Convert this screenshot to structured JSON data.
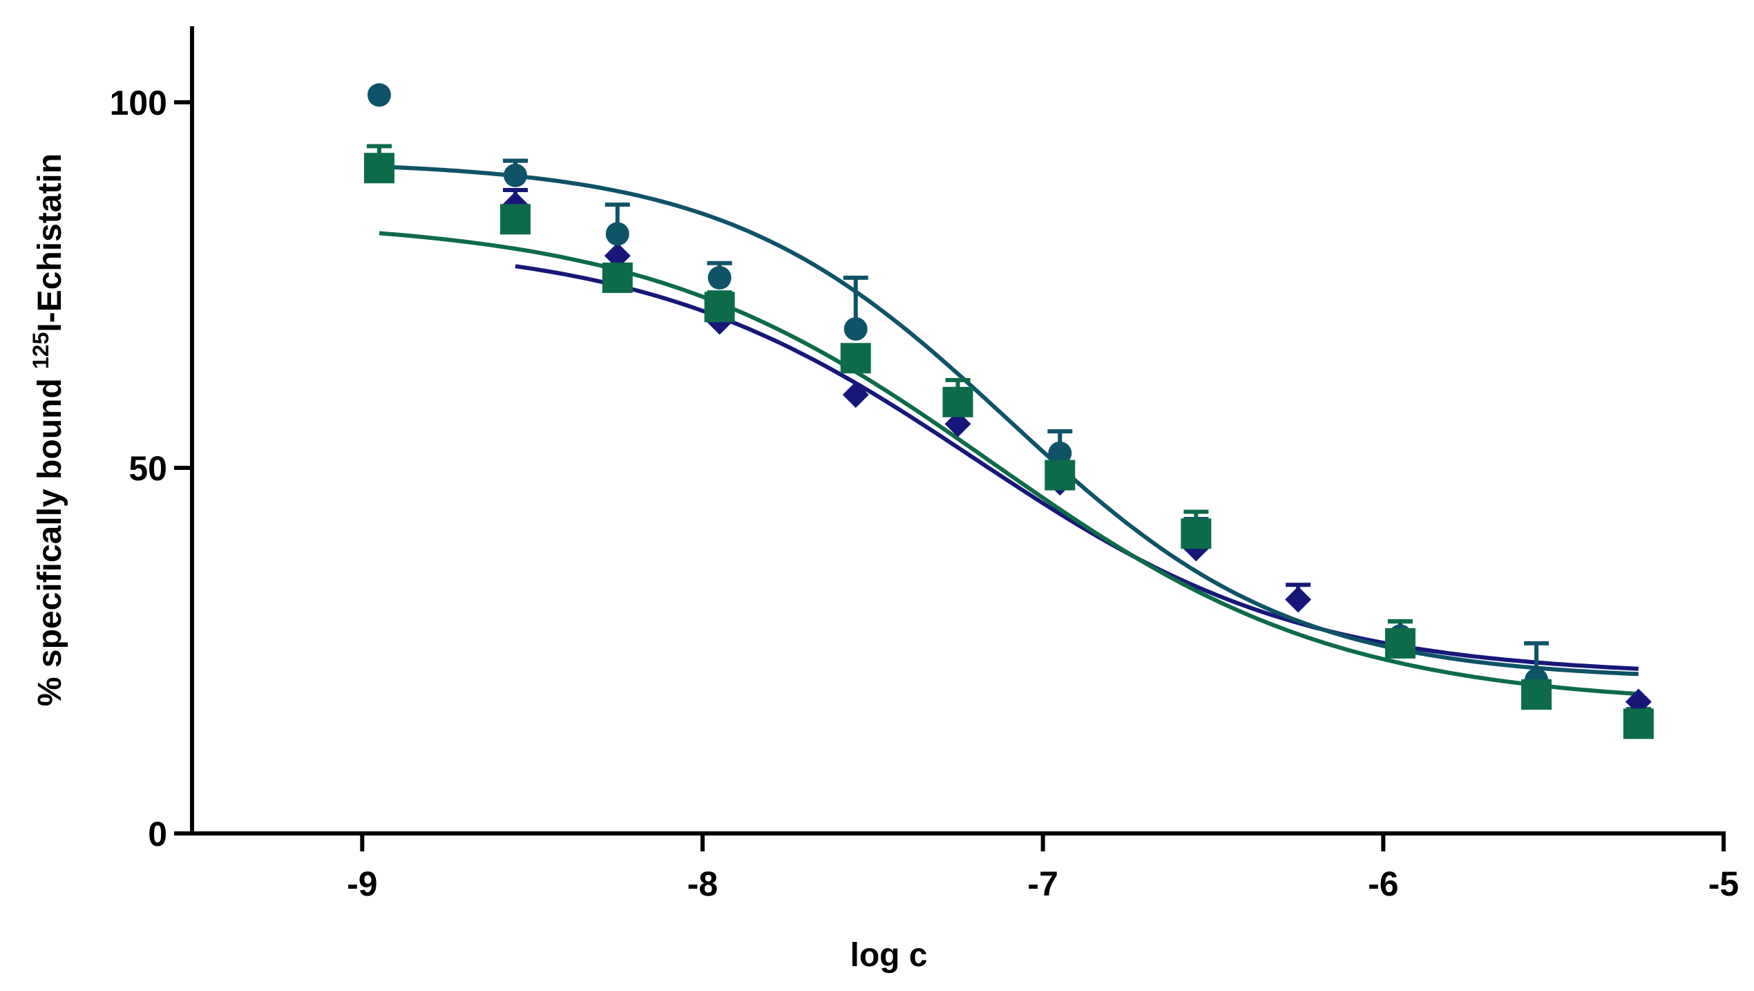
{
  "chart_data": {
    "type": "scatter",
    "title": "",
    "xlabel": "log c",
    "ylabel": {
      "prefix": "% specifically bound ",
      "superscript": "125",
      "suffix": "I-Echistatin"
    },
    "xlim": [
      -9.5,
      -5
    ],
    "ylim": [
      0,
      100
    ],
    "x_ticks": [
      -9,
      -8,
      -7,
      -6,
      -5
    ],
    "x_tick_labels": [
      "-9",
      "-8",
      "-7",
      "-6",
      "-5"
    ],
    "y_ticks": [
      0,
      50,
      100
    ],
    "y_tick_labels": [
      "0",
      "50",
      "100"
    ],
    "grid": false,
    "legend": "none",
    "series": [
      {
        "marker": "diamond",
        "color": "#17177a",
        "x": [
          -8.55,
          -8.25,
          -7.95,
          -7.55,
          -7.25,
          -6.95,
          -6.55,
          -6.25,
          -5.95,
          -5.55,
          -5.25
        ],
        "y": [
          86,
          79,
          70,
          60,
          56,
          48,
          39,
          32,
          27,
          21,
          18
        ],
        "error_plus": [
          2,
          0,
          0,
          0,
          0,
          0,
          0,
          2,
          2,
          0,
          0
        ],
        "fit": {
          "top": 81,
          "bottom": 21.5,
          "logIC50": -7.2,
          "hill": 0.9,
          "x_start": -8.55,
          "x_end": -5.25
        }
      },
      {
        "marker": "circle",
        "color": "#0e5367",
        "x": [
          -8.95,
          -8.55,
          -8.25,
          -7.95,
          -7.55,
          -7.25,
          -6.95,
          -6.55,
          -5.95,
          -5.55,
          -5.25
        ],
        "y": [
          101,
          90,
          82,
          76,
          69,
          59,
          52,
          41,
          27,
          21,
          15
        ],
        "error_plus": [
          0,
          2,
          4,
          2,
          7,
          3,
          3,
          2,
          2,
          5,
          2
        ],
        "fit": {
          "top": 92,
          "bottom": 21,
          "logIC50": -7.1,
          "hill": 1.05,
          "x_start": -8.95,
          "x_end": -5.25
        }
      },
      {
        "marker": "square",
        "color": "#0d6b4a",
        "x": [
          -8.95,
          -8.55,
          -8.25,
          -7.95,
          -7.55,
          -7.25,
          -6.95,
          -6.55,
          -5.95,
          -5.55,
          -5.25
        ],
        "y": [
          91,
          84,
          76,
          72,
          65,
          59,
          49,
          41,
          26,
          19,
          15
        ],
        "error_plus": [
          3,
          0,
          0,
          2,
          0,
          3,
          0,
          3,
          3,
          0,
          2
        ],
        "fit": {
          "top": 84,
          "bottom": 17.5,
          "logIC50": -7.15,
          "hill": 0.85,
          "x_start": -8.95,
          "x_end": -5.25
        }
      }
    ]
  }
}
